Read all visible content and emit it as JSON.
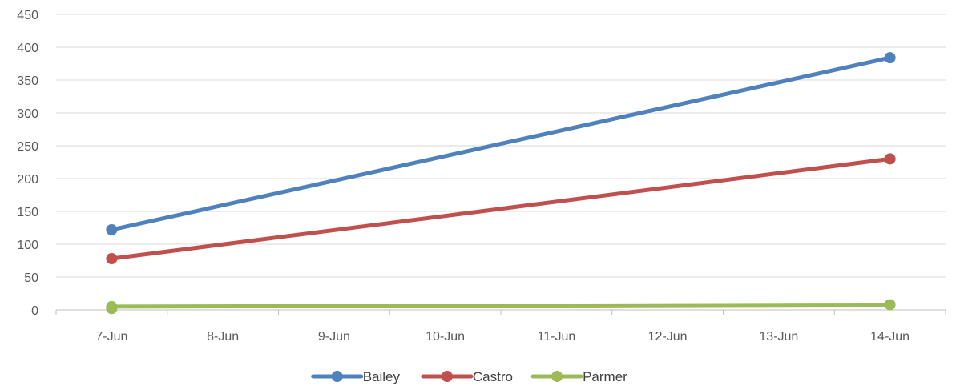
{
  "chart_data": {
    "type": "line",
    "title": "",
    "xlabel": "",
    "ylabel": "",
    "categories": [
      "7-Jun",
      "8-Jun",
      "9-Jun",
      "10-Jun",
      "11-Jun",
      "12-Jun",
      "13-Jun",
      "14-Jun"
    ],
    "y_ticks": [
      "0",
      "50",
      "100",
      "150",
      "200",
      "250",
      "300",
      "350",
      "400",
      "450"
    ],
    "ylim": [
      0,
      450
    ],
    "grid": true,
    "legend_position": "bottom",
    "series": [
      {
        "name": "Bailey",
        "color": "#4F81BD",
        "points": [
          {
            "x": "7-Jun",
            "y": 122
          },
          {
            "x": "14-Jun",
            "y": 384
          }
        ]
      },
      {
        "name": "Castro",
        "color": "#C0504D",
        "points": [
          {
            "x": "7-Jun",
            "y": 78
          },
          {
            "x": "14-Jun",
            "y": 230
          }
        ]
      },
      {
        "name": "Parmer",
        "color": "#9BBB59",
        "points": [
          {
            "x": "7-Jun",
            "y": 5
          },
          {
            "x": "7-Jun",
            "y": 2
          },
          {
            "x": "14-Jun",
            "y": 8
          }
        ]
      }
    ]
  }
}
